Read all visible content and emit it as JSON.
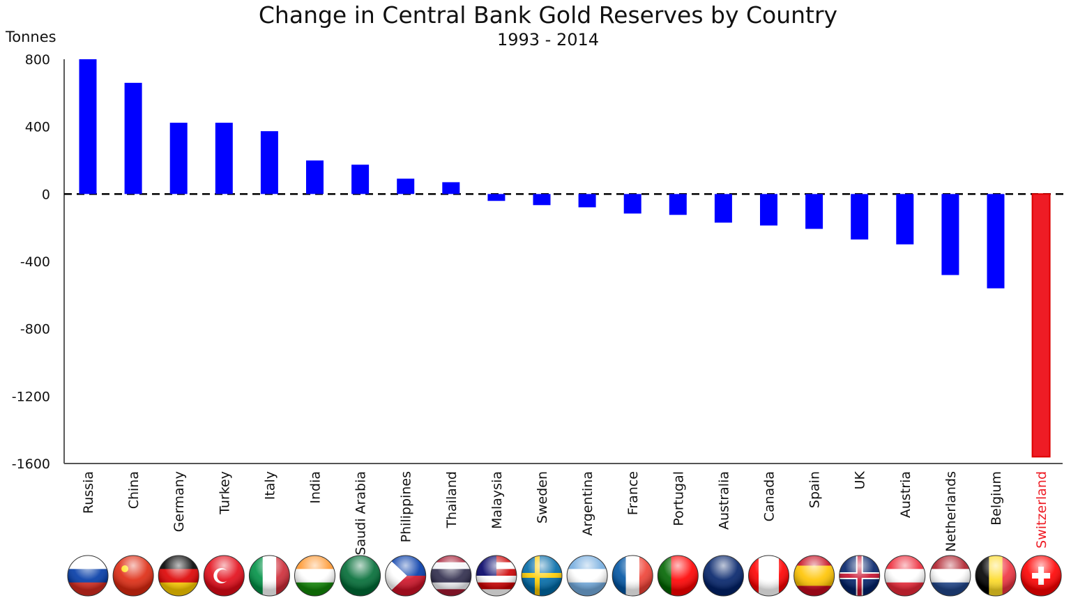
{
  "chart_data": {
    "type": "bar",
    "title": "Change in Central Bank Gold Reserves by Country",
    "subtitle": "1993 - 2014",
    "ylabel": "Tonnes",
    "xlabel": "",
    "ylim": [
      -1600,
      800
    ],
    "yticks": [
      800,
      400,
      0,
      -400,
      -800,
      -1200,
      -1600
    ],
    "grid": false,
    "zero_line": "dashed",
    "categories": [
      "Russia",
      "China",
      "Germany",
      "Turkey",
      "Italy",
      "India",
      "Saudi Arabia",
      "Philippines",
      "Thailand",
      "Malaysia",
      "Sweden",
      "Argentina",
      "France",
      "Portugal",
      "Australia",
      "Canada",
      "Spain",
      "UK",
      "Austria",
      "Netherlands",
      "Belgium",
      "Switzerland"
    ],
    "values": [
      800,
      660,
      423,
      423,
      373,
      199,
      174,
      91,
      70,
      -41,
      -66,
      -79,
      -116,
      -124,
      -170,
      -187,
      -207,
      -270,
      -299,
      -481,
      -560,
      -1560
    ],
    "bar_color": "#0000ff",
    "highlight": {
      "category": "Switzerland",
      "color": "#ee1c25"
    },
    "flags": [
      {
        "icon": "flag-russia",
        "stripes": [
          "#ffffff",
          "#0039a6",
          "#d52b1e"
        ],
        "dir": "h"
      },
      {
        "icon": "flag-china",
        "stripes": [
          "#de2910"
        ],
        "dir": "h"
      },
      {
        "icon": "flag-germany",
        "stripes": [
          "#000000",
          "#dd0000",
          "#ffce00"
        ],
        "dir": "h"
      },
      {
        "icon": "flag-turkey",
        "stripes": [
          "#e30a17"
        ],
        "dir": "h"
      },
      {
        "icon": "flag-italy",
        "stripes": [
          "#009246",
          "#ffffff",
          "#ce2b37"
        ],
        "dir": "v"
      },
      {
        "icon": "flag-india",
        "stripes": [
          "#ff9933",
          "#ffffff",
          "#138808"
        ],
        "dir": "h"
      },
      {
        "icon": "flag-saudi-arabia",
        "stripes": [
          "#006c35"
        ],
        "dir": "h"
      },
      {
        "icon": "flag-philippines",
        "stripes": [
          "#0038a8",
          "#ce1126"
        ],
        "dir": "h"
      },
      {
        "icon": "flag-thailand",
        "stripes": [
          "#a51931",
          "#f4f5f8",
          "#2d2a4a",
          "#2d2a4a",
          "#f4f5f8",
          "#a51931"
        ],
        "dir": "h"
      },
      {
        "icon": "flag-malaysia",
        "stripes": [
          "#cc0001",
          "#ffffff",
          "#cc0001",
          "#ffffff",
          "#cc0001",
          "#ffffff"
        ],
        "dir": "h"
      },
      {
        "icon": "flag-sweden",
        "stripes": [
          "#006aa7"
        ],
        "dir": "h"
      },
      {
        "icon": "flag-argentina",
        "stripes": [
          "#74acdf",
          "#ffffff",
          "#74acdf"
        ],
        "dir": "h"
      },
      {
        "icon": "flag-france",
        "stripes": [
          "#0055a4",
          "#ffffff",
          "#ef4135"
        ],
        "dir": "v"
      },
      {
        "icon": "flag-portugal",
        "stripes": [
          "#006600",
          "#ff0000",
          "#ff0000"
        ],
        "dir": "v"
      },
      {
        "icon": "flag-australia",
        "stripes": [
          "#012169"
        ],
        "dir": "h"
      },
      {
        "icon": "flag-canada",
        "stripes": [
          "#ff0000",
          "#ffffff",
          "#ffffff",
          "#ff0000"
        ],
        "dir": "v"
      },
      {
        "icon": "flag-spain",
        "stripes": [
          "#c60b1e",
          "#ffc400",
          "#ffc400",
          "#c60b1e"
        ],
        "dir": "h"
      },
      {
        "icon": "flag-uk",
        "stripes": [
          "#012169"
        ],
        "dir": "h"
      },
      {
        "icon": "flag-austria",
        "stripes": [
          "#ed2939",
          "#ffffff",
          "#ed2939"
        ],
        "dir": "h"
      },
      {
        "icon": "flag-netherlands",
        "stripes": [
          "#ae1c28",
          "#ffffff",
          "#21468b"
        ],
        "dir": "h"
      },
      {
        "icon": "flag-belgium",
        "stripes": [
          "#000000",
          "#fdda24",
          "#ef3340"
        ],
        "dir": "v"
      },
      {
        "icon": "flag-switzerland",
        "stripes": [
          "#ff0000"
        ],
        "dir": "h"
      }
    ]
  }
}
